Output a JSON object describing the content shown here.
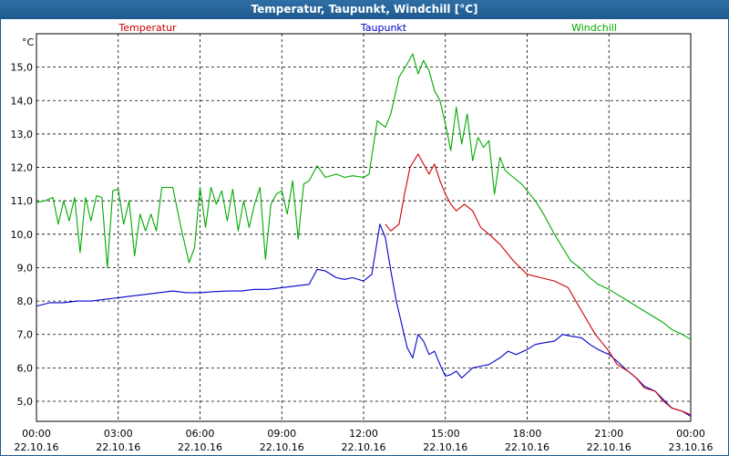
{
  "window": {
    "title": "Temperatur, Taupunkt, Windchill [°C]"
  },
  "chart_data": {
    "type": "line",
    "unit_label": "°C",
    "grid": true,
    "legend_placement": "top",
    "ylim": [
      4.4,
      16.0
    ],
    "yticks": [
      "15,0",
      "14,0",
      "13,0",
      "12,0",
      "11,0",
      "10,0",
      "9,0",
      "8,0",
      "7,0",
      "6,0",
      "5,0"
    ],
    "ytick_values": [
      15,
      14,
      13,
      12,
      11,
      10,
      9,
      8,
      7,
      6,
      5
    ],
    "xlim": [
      0,
      24
    ],
    "xticks": [
      {
        "time": "00:00",
        "date": "22.10.16",
        "hour": 0
      },
      {
        "time": "03:00",
        "date": "22.10.16",
        "hour": 3
      },
      {
        "time": "06:00",
        "date": "22.10.16",
        "hour": 6
      },
      {
        "time": "09:00",
        "date": "22.10.16",
        "hour": 9
      },
      {
        "time": "12:00",
        "date": "22.10.16",
        "hour": 12
      },
      {
        "time": "15:00",
        "date": "22.10.16",
        "hour": 15
      },
      {
        "time": "18:00",
        "date": "22.10.16",
        "hour": 18
      },
      {
        "time": "21:00",
        "date": "22.10.16",
        "hour": 21
      },
      {
        "time": "00:00",
        "date": "23.10.16",
        "hour": 24
      }
    ],
    "series": [
      {
        "name": "Temperatur",
        "color": "#cc0000",
        "x": [
          12.8,
          13.0,
          13.3,
          13.5,
          13.7,
          14.0,
          14.2,
          14.4,
          14.6,
          14.8,
          15.0,
          15.2,
          15.4,
          15.7,
          16.0,
          16.3,
          16.6,
          17.0,
          17.5,
          18.0,
          18.5,
          19.0,
          19.5,
          20.0,
          20.5,
          21.0,
          21.3,
          21.7,
          22.0,
          22.3,
          22.7,
          23.0,
          23.3,
          23.7,
          24.0
        ],
        "y": [
          10.3,
          10.1,
          10.3,
          11.2,
          12.0,
          12.4,
          12.1,
          11.8,
          12.1,
          11.6,
          11.2,
          10.9,
          10.7,
          10.9,
          10.7,
          10.2,
          10.0,
          9.7,
          9.2,
          8.8,
          8.7,
          8.6,
          8.4,
          7.7,
          7.0,
          6.5,
          6.1,
          5.9,
          5.7,
          5.4,
          5.3,
          5.0,
          4.8,
          4.7,
          4.6
        ]
      },
      {
        "name": "Taupunkt",
        "color": "#0000cc",
        "x": [
          0,
          0.5,
          1.0,
          1.5,
          2.0,
          2.5,
          3.0,
          3.5,
          4.0,
          4.5,
          5.0,
          5.5,
          6.0,
          6.5,
          7.0,
          7.5,
          8.0,
          8.5,
          9.0,
          9.5,
          10.0,
          10.3,
          10.6,
          11.0,
          11.3,
          11.6,
          12.0,
          12.3,
          12.6,
          12.8,
          13.0,
          13.2,
          13.4,
          13.6,
          13.8,
          14.0,
          14.2,
          14.4,
          14.6,
          14.8,
          15.0,
          15.2,
          15.4,
          15.6,
          15.8,
          16.0,
          16.3,
          16.6,
          17.0,
          17.3,
          17.6,
          18.0,
          18.3,
          18.6,
          19.0,
          19.3,
          19.6,
          20.0,
          20.3,
          20.6,
          21.0,
          21.3,
          21.7,
          22.0,
          22.3,
          22.7,
          23.0,
          23.3,
          23.7,
          24.0
        ],
        "y": [
          7.85,
          7.95,
          7.95,
          8.0,
          8.0,
          8.05,
          8.1,
          8.15,
          8.2,
          8.25,
          8.3,
          8.25,
          8.25,
          8.28,
          8.3,
          8.3,
          8.35,
          8.35,
          8.4,
          8.45,
          8.5,
          8.95,
          8.9,
          8.7,
          8.65,
          8.7,
          8.6,
          8.8,
          10.3,
          9.9,
          8.9,
          8.0,
          7.3,
          6.6,
          6.3,
          7.0,
          6.8,
          6.4,
          6.5,
          6.1,
          5.75,
          5.8,
          5.9,
          5.7,
          5.85,
          6.0,
          6.05,
          6.1,
          6.3,
          6.5,
          6.4,
          6.55,
          6.7,
          6.75,
          6.8,
          7.0,
          6.95,
          6.9,
          6.7,
          6.55,
          6.4,
          6.2,
          5.9,
          5.7,
          5.45,
          5.3,
          5.05,
          4.8,
          4.7,
          4.55
        ]
      },
      {
        "name": "Windchill",
        "color": "#00aa00",
        "x": [
          0,
          0.3,
          0.6,
          0.8,
          1.0,
          1.2,
          1.4,
          1.6,
          1.8,
          2.0,
          2.2,
          2.4,
          2.6,
          2.8,
          3.0,
          3.2,
          3.4,
          3.6,
          3.8,
          4.0,
          4.2,
          4.4,
          4.6,
          4.8,
          5.0,
          5.3,
          5.6,
          5.8,
          6.0,
          6.2,
          6.4,
          6.6,
          6.8,
          7.0,
          7.2,
          7.4,
          7.6,
          7.8,
          8.0,
          8.2,
          8.4,
          8.6,
          8.8,
          9.0,
          9.2,
          9.4,
          9.6,
          9.8,
          10.0,
          10.3,
          10.6,
          11.0,
          11.3,
          11.6,
          12.0,
          12.2,
          12.5,
          12.8,
          13.0,
          13.3,
          13.6,
          13.8,
          14.0,
          14.2,
          14.4,
          14.6,
          14.8,
          15.0,
          15.2,
          15.4,
          15.6,
          15.8,
          16.0,
          16.2,
          16.4,
          16.6,
          16.8,
          17.0,
          17.2,
          17.5,
          17.8,
          18.0,
          18.3,
          18.6,
          19.0,
          19.3,
          19.6,
          20.0,
          20.3,
          20.6,
          21.0,
          21.3,
          21.7,
          22.0,
          22.3,
          22.7,
          23.0,
          23.3,
          23.7,
          24.0
        ],
        "y": [
          10.95,
          11.0,
          11.1,
          10.3,
          11.0,
          10.4,
          11.1,
          9.45,
          11.1,
          10.4,
          11.15,
          11.1,
          9.0,
          11.3,
          11.35,
          10.3,
          11.0,
          9.35,
          10.6,
          10.1,
          10.6,
          10.1,
          11.4,
          11.4,
          11.4,
          10.2,
          9.15,
          9.6,
          11.4,
          10.2,
          11.4,
          10.9,
          11.3,
          10.4,
          11.35,
          10.1,
          11.0,
          10.2,
          10.9,
          11.4,
          9.25,
          10.9,
          11.2,
          11.3,
          10.6,
          11.6,
          9.85,
          11.5,
          11.6,
          12.05,
          11.7,
          11.8,
          11.7,
          11.75,
          11.7,
          11.8,
          13.4,
          13.2,
          13.6,
          14.7,
          15.1,
          15.4,
          14.8,
          15.2,
          14.9,
          14.3,
          14.0,
          13.3,
          12.5,
          13.8,
          12.7,
          13.6,
          12.2,
          12.9,
          12.6,
          12.8,
          11.2,
          12.3,
          11.9,
          11.7,
          11.5,
          11.3,
          11.0,
          10.6,
          10.0,
          9.6,
          9.2,
          8.95,
          8.7,
          8.5,
          8.35,
          8.2,
          8.0,
          7.85,
          7.7,
          7.5,
          7.35,
          7.15,
          7.0,
          6.85
        ]
      }
    ]
  }
}
